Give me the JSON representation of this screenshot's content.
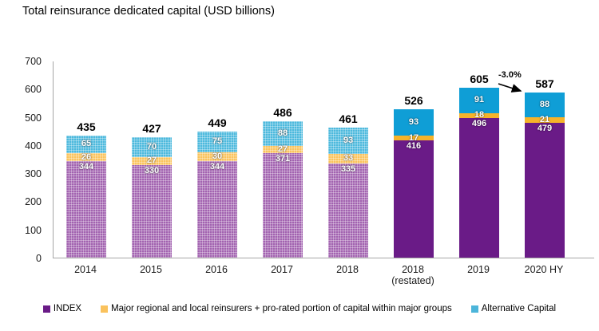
{
  "title": "Total reinsurance dedicated capital (USD billions)",
  "annotation": {
    "text": "-3.0%"
  },
  "legend": [
    {
      "label": "INDEX",
      "color": "#6a1b87"
    },
    {
      "label": "Major regional and local reinsurers + pro-rated portion of capital within major groups",
      "color": "#fac25d"
    },
    {
      "label": "Alternative Capital",
      "color": "#4cb5da"
    }
  ],
  "colors": {
    "purple_solid": "#6a1b87",
    "purple_hist": "#a263b0",
    "gold_solid": "#f6b32a",
    "gold_hist": "#fbc35c",
    "blue_solid": "#0f9ed6",
    "blue_hist": "#4cb9dd",
    "axis": "#a6a6a6"
  },
  "chart_data": {
    "type": "bar",
    "stacked": true,
    "title": "Total reinsurance dedicated capital (USD billions)",
    "categories": [
      "2014",
      "2015",
      "2016",
      "2017",
      "2018",
      "2018 (restated)",
      "2019",
      "2020 HY"
    ],
    "series": [
      {
        "name": "INDEX",
        "values": [
          344,
          330,
          344,
          371,
          335,
          416,
          496,
          479
        ]
      },
      {
        "name": "Major regional and local reinsurers + pro-rated portion of capital within major groups",
        "values": [
          26,
          27,
          30,
          27,
          33,
          17,
          18,
          21
        ]
      },
      {
        "name": "Alternative Capital",
        "values": [
          65,
          70,
          75,
          88,
          93,
          93,
          91,
          88
        ]
      }
    ],
    "totals": [
      435,
      427,
      449,
      486,
      461,
      526,
      605,
      587
    ],
    "xlabel": "",
    "ylabel": "",
    "ylim": [
      0,
      700
    ],
    "yticks": [
      0,
      100,
      200,
      300,
      400,
      500,
      600,
      700
    ],
    "grid": false,
    "legend_position": "bottom",
    "textured_categories": [
      0,
      1,
      2,
      3,
      4
    ],
    "solid_categories": [
      5,
      6,
      7
    ],
    "annotation": {
      "text": "-3.0%",
      "from_category": "2019",
      "to_category": "2020 HY"
    }
  }
}
